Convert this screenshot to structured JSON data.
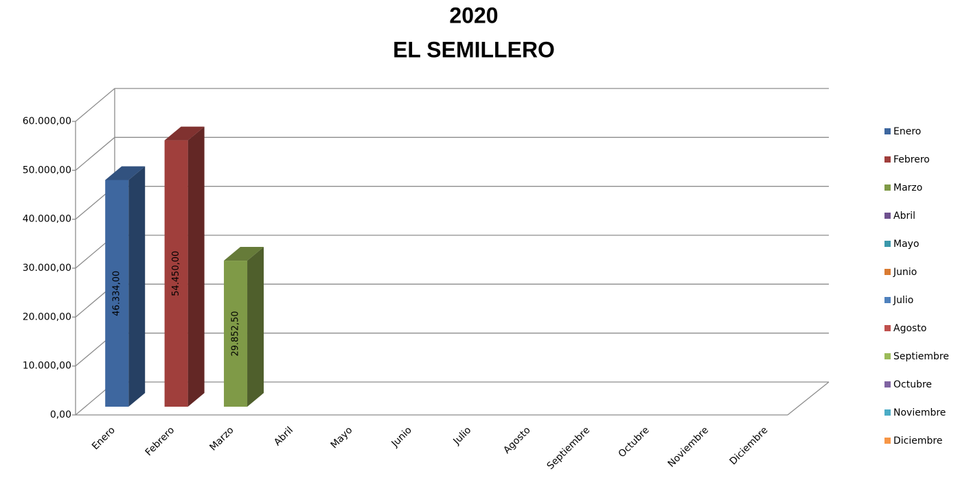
{
  "chart_data": {
    "type": "bar3d",
    "title": [
      "2020",
      "EL SEMILLERO"
    ],
    "categories": [
      "Enero",
      "Febrero",
      "Marzo",
      "Abril",
      "Mayo",
      "Junio",
      "Julio",
      "Agosto",
      "Septiembre",
      "Octubre",
      "Noviembre",
      "Diciembre"
    ],
    "values": [
      46334,
      54450,
      29852.5,
      null,
      null,
      null,
      null,
      null,
      null,
      null,
      null,
      null
    ],
    "value_labels": [
      "46.334,00",
      "54.450,00",
      "29.852,50",
      null,
      null,
      null,
      null,
      null,
      null,
      null,
      null,
      null
    ],
    "colors": [
      "#3e679f",
      "#a03f3c",
      "#7f9a47",
      "#6f518f",
      "#3b98ab",
      "#d97b32",
      "#4f81bd",
      "#c0504d",
      "#9bbb59",
      "#8064a2",
      "#4bacc6",
      "#f79646"
    ],
    "ylim": [
      0,
      60000
    ],
    "yticks": [
      {
        "value": 0,
        "label": "0,00"
      },
      {
        "value": 10000,
        "label": "10.000,00"
      },
      {
        "value": 20000,
        "label": "20.000,00"
      },
      {
        "value": 30000,
        "label": "30.000,00"
      },
      {
        "value": 40000,
        "label": "40.000,00"
      },
      {
        "value": 50000,
        "label": "50.000,00"
      },
      {
        "value": 60000,
        "label": "60.000,00"
      }
    ],
    "grid": true,
    "legend": "right"
  }
}
